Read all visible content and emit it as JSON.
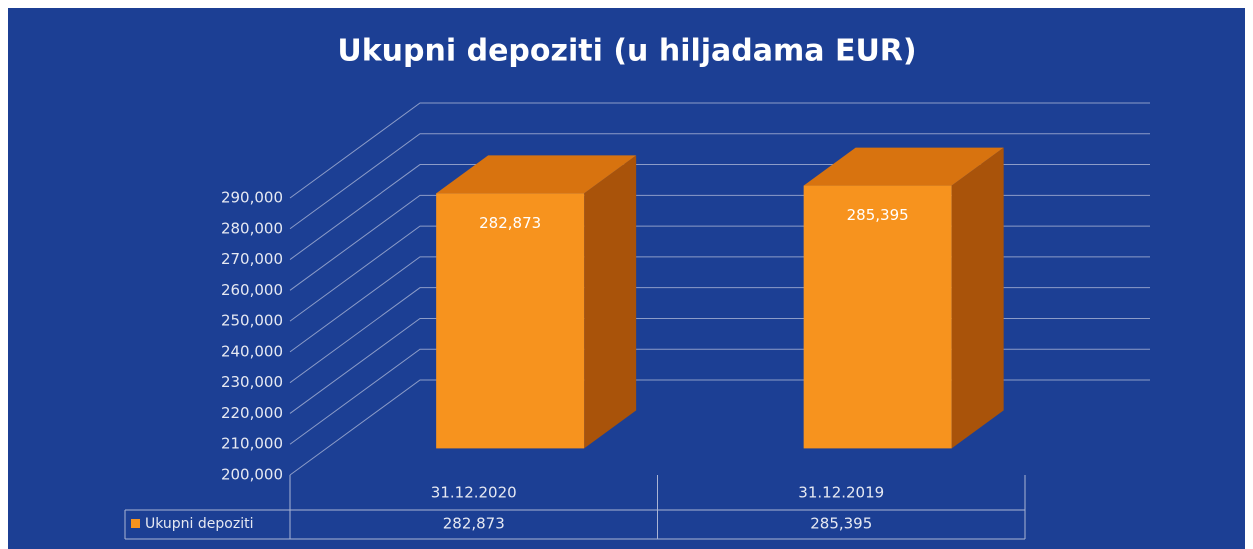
{
  "chart_data": {
    "type": "bar3d",
    "title": "Ukupni depoziti (u hiljadama EUR)",
    "categories": [
      "31.12.2020",
      "31.12.2019"
    ],
    "series": [
      {
        "name": "Ukupni depoziti",
        "color": "#f7931e",
        "values": [
          282873,
          285395
        ],
        "value_labels": [
          "282,873",
          "285,395"
        ]
      }
    ],
    "ylim": [
      200000,
      290000
    ],
    "yticks": [
      {
        "value": 200000,
        "label": "200,000"
      },
      {
        "value": 210000,
        "label": "210,000"
      },
      {
        "value": 220000,
        "label": "220,000"
      },
      {
        "value": 230000,
        "label": "230,000"
      },
      {
        "value": 240000,
        "label": "240,000"
      },
      {
        "value": 250000,
        "label": "250,000"
      },
      {
        "value": 260000,
        "label": "260,000"
      },
      {
        "value": 270000,
        "label": "270,000"
      },
      {
        "value": 280000,
        "label": "280,000"
      },
      {
        "value": 290000,
        "label": "290,000"
      }
    ],
    "grid": true,
    "data_table": true
  }
}
